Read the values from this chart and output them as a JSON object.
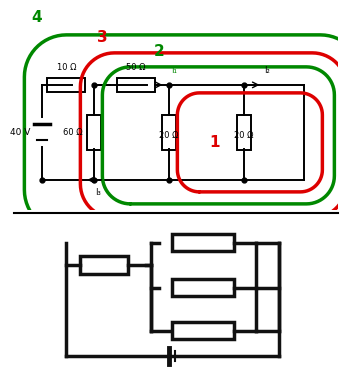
{
  "bg_color": "#ffffff",
  "circuit_color": "#000000",
  "red_color": "#dd0000",
  "green_color": "#008800",
  "voltage_label": "40 V",
  "r1_label": "10 Ω",
  "r2_label": "50 Ω",
  "r3_label": "60 Ω",
  "r4_label": "20 Ω",
  "r5_label": "20 Ω",
  "i1_label": "I₁",
  "i2_label": "I₂",
  "i3_label": "I₃",
  "loop1_label": "1",
  "loop2_label": "2",
  "loop3_label": "3",
  "loop4_label": "4"
}
